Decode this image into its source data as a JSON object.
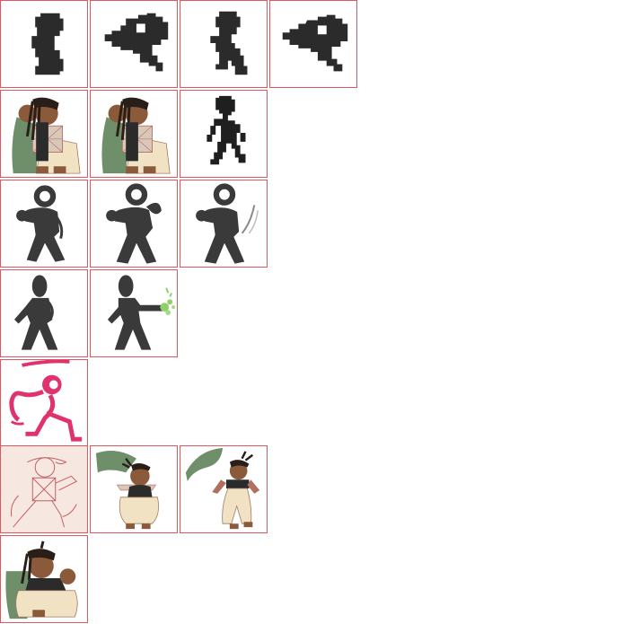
{
  "sheet": {
    "grid_color": "#e0585f",
    "rows": [
      {
        "name": "row-1",
        "frames": 4,
        "style": "pixel-silhouette"
      },
      {
        "name": "row-2",
        "frames": 3,
        "style": "colored-character-and-pixel"
      },
      {
        "name": "row-3",
        "frames": 3,
        "style": "ink-silhouette"
      },
      {
        "name": "row-4",
        "frames": 2,
        "style": "ink-silhouette"
      },
      {
        "name": "row-5",
        "frames": 1,
        "style": "pink-sketch"
      },
      {
        "name": "row-6",
        "frames": 3,
        "style": "colored-character"
      },
      {
        "name": "row-7",
        "frames": 1,
        "style": "colored-character"
      }
    ]
  },
  "colors": {
    "silhouette": "#2b2b2b",
    "pink": "#e0326e",
    "skin": "#8a5a3a",
    "cloak": "#6f8f6a",
    "pants": "#f1e2c4",
    "green_fx": "#8fd06a"
  }
}
